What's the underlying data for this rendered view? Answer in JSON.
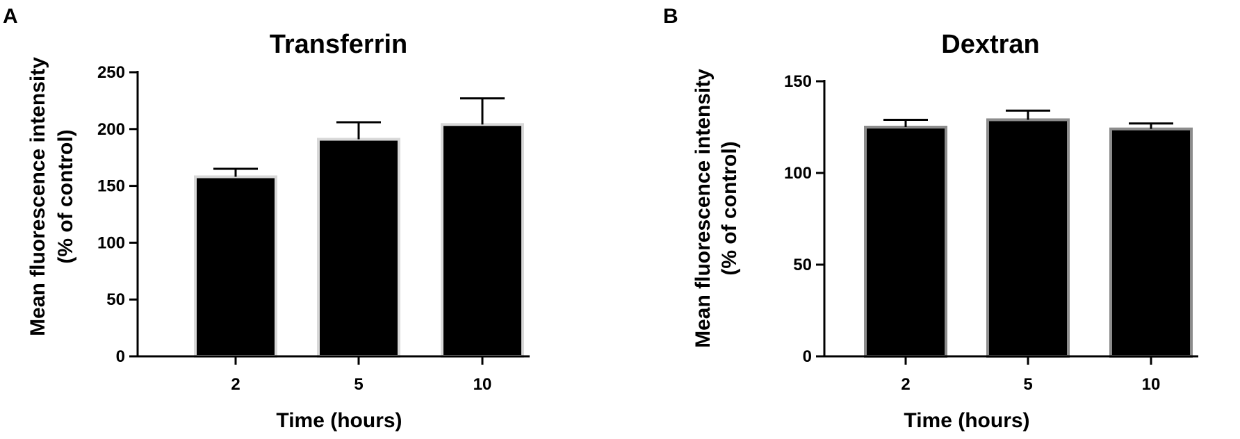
{
  "panels": [
    {
      "letter": "A"
    },
    {
      "letter": "B"
    }
  ],
  "chart_data": [
    {
      "type": "bar",
      "title": "Transferrin",
      "xlabel": "Time (hours)",
      "ylabel_line1": "Mean fluorescence intensity",
      "ylabel_line2": "(% of control)",
      "categories": [
        "2",
        "5",
        "10"
      ],
      "values": [
        158,
        191,
        204
      ],
      "errors": [
        7,
        15,
        23
      ],
      "ylim": [
        0,
        250
      ],
      "yticks": [
        "0",
        "50",
        "100",
        "150",
        "200",
        "250"
      ],
      "grid": false,
      "bar_color": "#000000",
      "bar_outline_color": "#d8d8d8"
    },
    {
      "type": "bar",
      "title": "Dextran",
      "xlabel": "Time (hours)",
      "ylabel_line1": "Mean fluorescence intensity",
      "ylabel_line2": "(% of control)",
      "categories": [
        "2",
        "5",
        "10"
      ],
      "values": [
        125,
        129,
        124
      ],
      "errors": [
        4,
        5,
        3
      ],
      "ylim": [
        0,
        150
      ],
      "yticks": [
        "0",
        "50",
        "100",
        "150"
      ],
      "grid": false,
      "bar_color": "#000000",
      "bar_outline_color": "#8c8c8c"
    }
  ]
}
